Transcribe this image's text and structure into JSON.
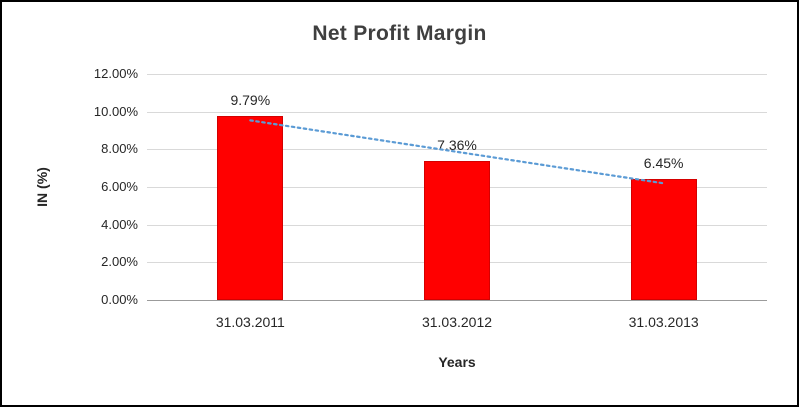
{
  "chart_data": {
    "type": "bar",
    "title": "Net Profit Margin",
    "xlabel": "Years",
    "ylabel": "IN (%)",
    "categories": [
      "31.03.2011",
      "31.03.2012",
      "31.03.2013"
    ],
    "values": [
      9.79,
      7.36,
      6.45
    ],
    "data_labels": [
      "9.79%",
      "7.36%",
      "6.45%"
    ],
    "ylim": [
      0,
      12
    ],
    "yticks": {
      "values": [
        0,
        2,
        4,
        6,
        8,
        10,
        12
      ],
      "labels": [
        "0.00%",
        "2.00%",
        "4.00%",
        "6.00%",
        "8.00%",
        "10.00%",
        "12.00%"
      ]
    },
    "grid": true,
    "legend": false,
    "bar_color": "#FF0000",
    "trendline": {
      "type": "linear",
      "style": "dotted",
      "color": "#5B9BD5"
    }
  }
}
